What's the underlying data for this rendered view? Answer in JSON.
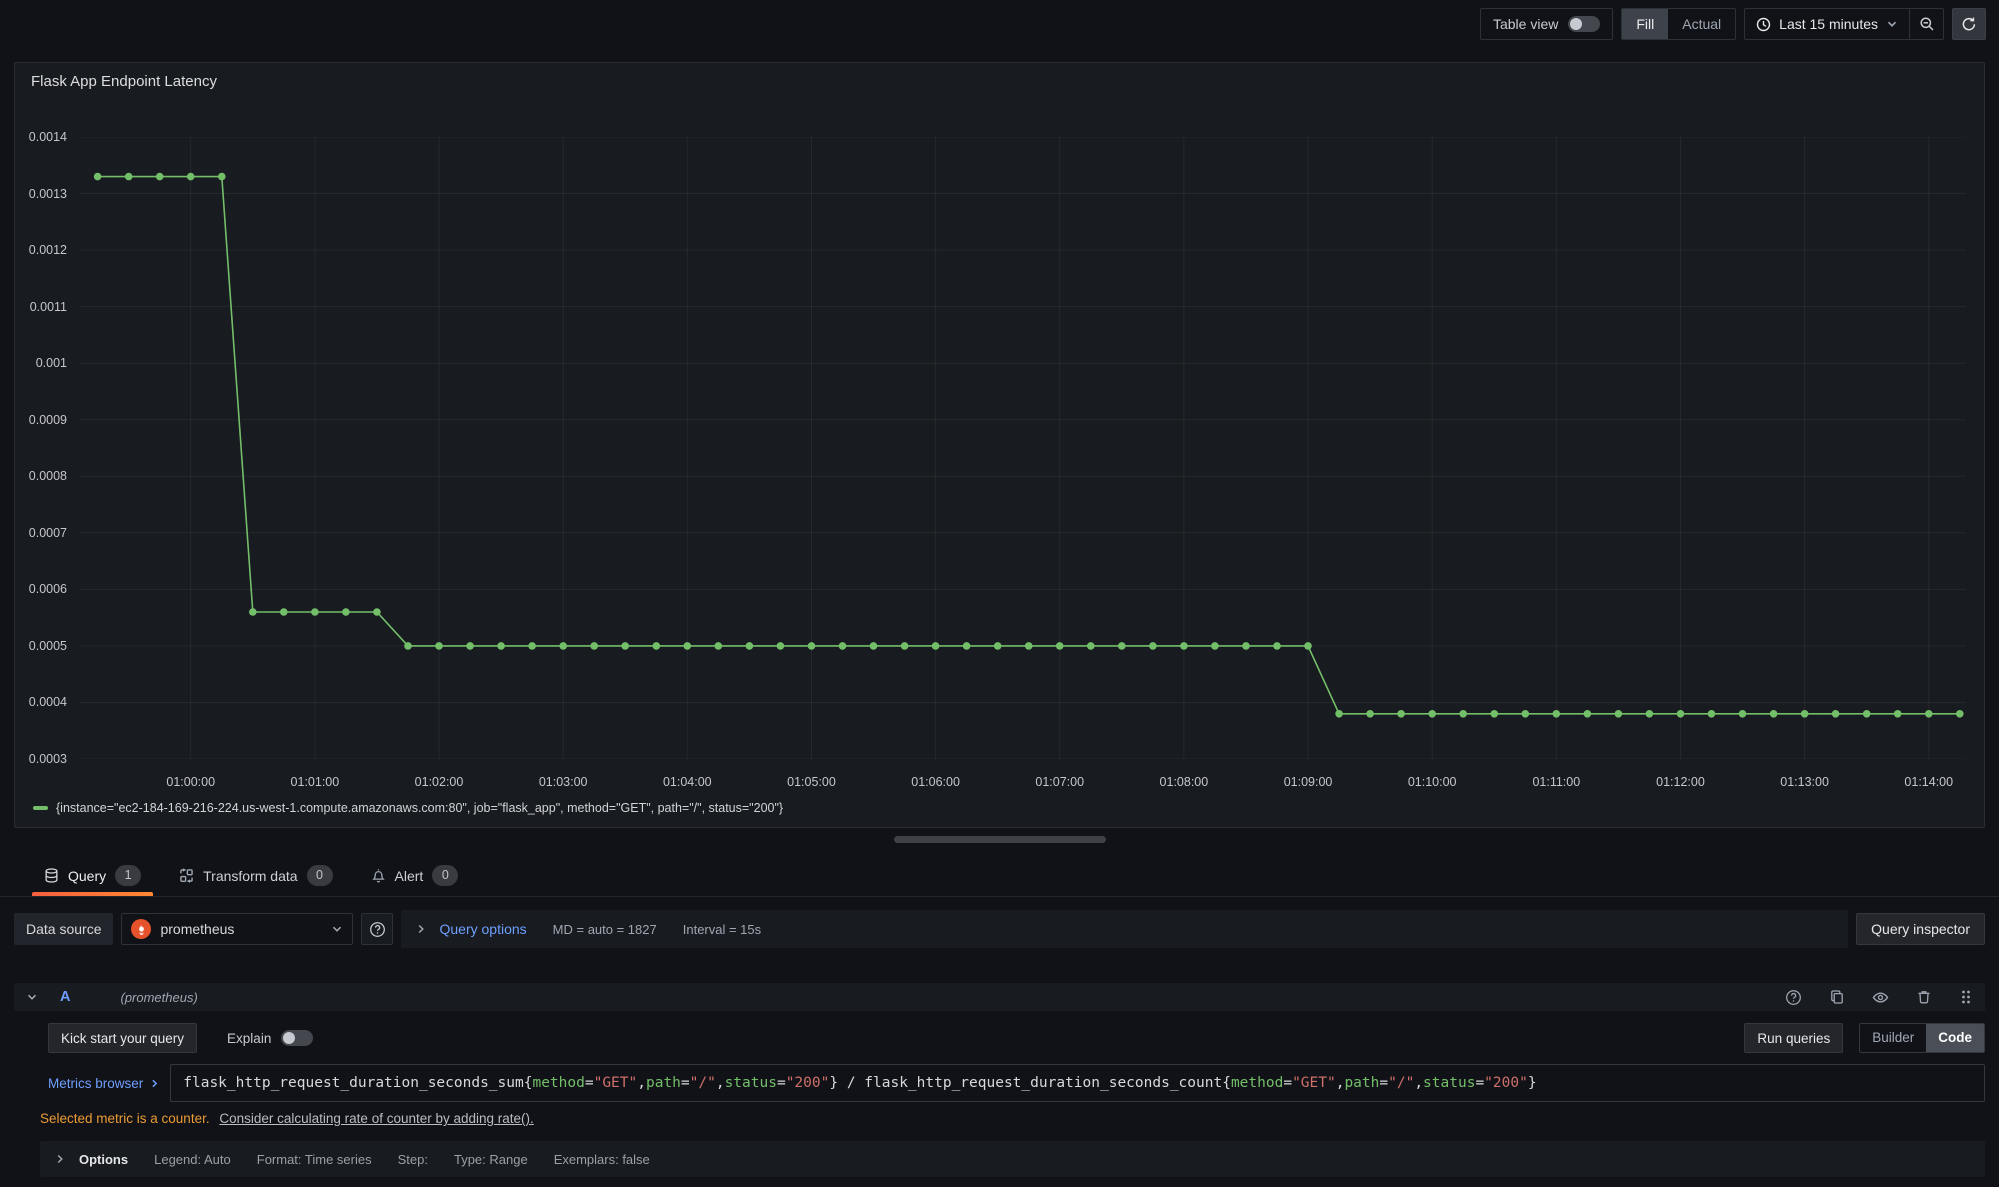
{
  "toolbar": {
    "table_view_label": "Table view",
    "fill_label": "Fill",
    "actual_label": "Actual",
    "time_range_label": "Last 15 minutes"
  },
  "panel": {
    "title": "Flask App Endpoint Latency"
  },
  "chart_data": {
    "type": "line",
    "title": "Flask App Endpoint Latency",
    "ylim": [
      0.0003,
      0.0014
    ],
    "y_ticks": [
      "0.0003",
      "0.0004",
      "0.0005",
      "0.0006",
      "0.0007",
      "0.0008",
      "0.0009",
      "0.001",
      "0.0011",
      "0.0012",
      "0.0013",
      "0.0014"
    ],
    "x_ticks": [
      "01:00:00",
      "01:01:00",
      "01:02:00",
      "01:03:00",
      "01:04:00",
      "01:05:00",
      "01:06:00",
      "01:07:00",
      "01:08:00",
      "01:09:00",
      "01:10:00",
      "01:11:00",
      "01:12:00",
      "01:13:00",
      "01:14:00"
    ],
    "x_domain_seconds": [
      -54,
      858
    ],
    "grid": true,
    "legend_position": "bottom",
    "series": [
      {
        "name": "{instance=\"ec2-184-169-216-224.us-west-1.compute.amazonaws.com:80\", job=\"flask_app\", method=\"GET\", path=\"/\", status=\"200\"}",
        "color": "#73bf69",
        "points": [
          [
            -45,
            0.00133
          ],
          [
            -30,
            0.00133
          ],
          [
            -15,
            0.00133
          ],
          [
            0,
            0.00133
          ],
          [
            15,
            0.00133
          ],
          [
            30,
            0.00056
          ],
          [
            45,
            0.00056
          ],
          [
            60,
            0.00056
          ],
          [
            75,
            0.00056
          ],
          [
            90,
            0.00056
          ],
          [
            105,
            0.0005
          ],
          [
            120,
            0.0005
          ],
          [
            135,
            0.0005
          ],
          [
            150,
            0.0005
          ],
          [
            165,
            0.0005
          ],
          [
            180,
            0.0005
          ],
          [
            195,
            0.0005
          ],
          [
            210,
            0.0005
          ],
          [
            225,
            0.0005
          ],
          [
            240,
            0.0005
          ],
          [
            255,
            0.0005
          ],
          [
            270,
            0.0005
          ],
          [
            285,
            0.0005
          ],
          [
            300,
            0.0005
          ],
          [
            315,
            0.0005
          ],
          [
            330,
            0.0005
          ],
          [
            345,
            0.0005
          ],
          [
            360,
            0.0005
          ],
          [
            375,
            0.0005
          ],
          [
            390,
            0.0005
          ],
          [
            405,
            0.0005
          ],
          [
            420,
            0.0005
          ],
          [
            435,
            0.0005
          ],
          [
            450,
            0.0005
          ],
          [
            465,
            0.0005
          ],
          [
            480,
            0.0005
          ],
          [
            495,
            0.0005
          ],
          [
            510,
            0.0005
          ],
          [
            525,
            0.0005
          ],
          [
            540,
            0.0005
          ],
          [
            555,
            0.00038
          ],
          [
            570,
            0.00038
          ],
          [
            585,
            0.00038
          ],
          [
            600,
            0.00038
          ],
          [
            615,
            0.00038
          ],
          [
            630,
            0.00038
          ],
          [
            645,
            0.00038
          ],
          [
            660,
            0.00038
          ],
          [
            675,
            0.00038
          ],
          [
            690,
            0.00038
          ],
          [
            705,
            0.00038
          ],
          [
            720,
            0.00038
          ],
          [
            735,
            0.00038
          ],
          [
            750,
            0.00038
          ],
          [
            765,
            0.00038
          ],
          [
            780,
            0.00038
          ],
          [
            795,
            0.00038
          ],
          [
            810,
            0.00038
          ],
          [
            825,
            0.00038
          ],
          [
            840,
            0.00038
          ],
          [
            855,
            0.00038
          ]
        ]
      }
    ]
  },
  "tabs": {
    "query": {
      "label": "Query",
      "count": "1"
    },
    "transform": {
      "label": "Transform data",
      "count": "0"
    },
    "alert": {
      "label": "Alert",
      "count": "0"
    }
  },
  "datasource": {
    "label": "Data source",
    "name": "prometheus",
    "options_label": "Query options",
    "md_text": "MD = auto = 1827",
    "interval_text": "Interval = 15s",
    "inspector_label": "Query inspector"
  },
  "query_row": {
    "ref_id": "A",
    "hint": "(prometheus)"
  },
  "editor": {
    "kick_start": "Kick start your query",
    "explain": "Explain",
    "run": "Run queries",
    "builder": "Builder",
    "code": "Code",
    "metrics_browser": "Metrics browser",
    "tokens": [
      {
        "c": "p",
        "t": "flask_http_request_duration_seconds_sum{"
      },
      {
        "c": "l",
        "t": "method"
      },
      {
        "c": "p",
        "t": "="
      },
      {
        "c": "s",
        "t": "\"GET\""
      },
      {
        "c": "p",
        "t": ","
      },
      {
        "c": "l",
        "t": "path"
      },
      {
        "c": "p",
        "t": "="
      },
      {
        "c": "s",
        "t": "\"/\""
      },
      {
        "c": "p",
        "t": ","
      },
      {
        "c": "l",
        "t": "status"
      },
      {
        "c": "p",
        "t": "="
      },
      {
        "c": "s",
        "t": "\"200\""
      },
      {
        "c": "p",
        "t": "} / flask_http_request_duration_seconds_count{"
      },
      {
        "c": "l",
        "t": "method"
      },
      {
        "c": "p",
        "t": "="
      },
      {
        "c": "s",
        "t": "\"GET\""
      },
      {
        "c": "p",
        "t": ","
      },
      {
        "c": "l",
        "t": "path"
      },
      {
        "c": "p",
        "t": "="
      },
      {
        "c": "s",
        "t": "\"/\""
      },
      {
        "c": "p",
        "t": ","
      },
      {
        "c": "l",
        "t": "status"
      },
      {
        "c": "p",
        "t": "="
      },
      {
        "c": "s",
        "t": "\"200\""
      },
      {
        "c": "p",
        "t": "}"
      }
    ],
    "warning": "Selected metric is a counter.",
    "warning_link": "Consider calculating rate of counter by adding rate().",
    "options": "Options",
    "summary": [
      "Legend: Auto",
      "Format: Time series",
      "Step:",
      "Type: Range",
      "Exemplars: false"
    ]
  },
  "colors": {
    "series_green": "#73bf69",
    "link_blue": "#6e9fff",
    "warning_orange": "#eb9b34",
    "tab_accent": "#ff8833",
    "promql_label": "#73bf69",
    "promql_string": "#ce7069",
    "panel_bg": "#181b1f",
    "page_bg": "#111217"
  }
}
